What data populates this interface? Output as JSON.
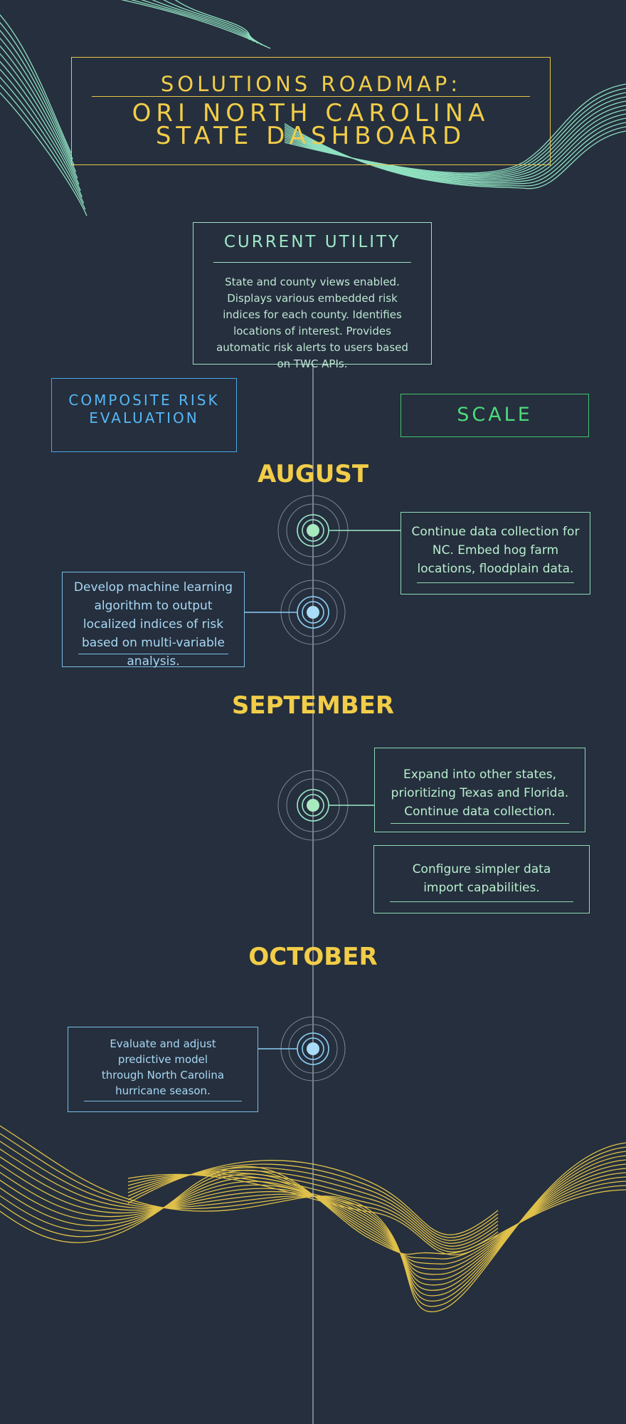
{
  "header": {
    "title_line1": "SOLUTIONS ROADMAP:",
    "title_line2": "ORI NORTH CAROLINA",
    "title_line3": "STATE DASHBOARD"
  },
  "current_utility": {
    "title": "CURRENT UTILITY",
    "body": "State and county views enabled. Displays various embedded risk indices for each county. Identifies locations of interest. Provides automatic risk alerts to users based on TWC APIs."
  },
  "tracks": {
    "left_label": "COMPOSITE RISK EVALUATION",
    "right_label": "SCALE"
  },
  "months": {
    "august": "AUGUST",
    "september": "SEPTEMBER",
    "october": "OCTOBER"
  },
  "milestones": {
    "aug_scale": "Continue data collection for NC. Embed hog farm locations, floodplain data.",
    "aug_composite": "Develop machine learning algorithm to output localized indices of risk based on multi-variable analysis.",
    "sep_scale_1": "Expand into other states, prioritizing Texas and Florida. Continue data collection.",
    "sep_scale_2": "Configure simpler data import capabilities.",
    "oct_composite": "Evaluate and adjust predictive model through North Carolina hurricane season."
  },
  "colors": {
    "background": "#252f3d",
    "accent_yellow": "#f2cd48",
    "accent_mint": "#9ee8c8",
    "accent_blue": "#57b7f5",
    "accent_green": "#4ddb7a"
  }
}
